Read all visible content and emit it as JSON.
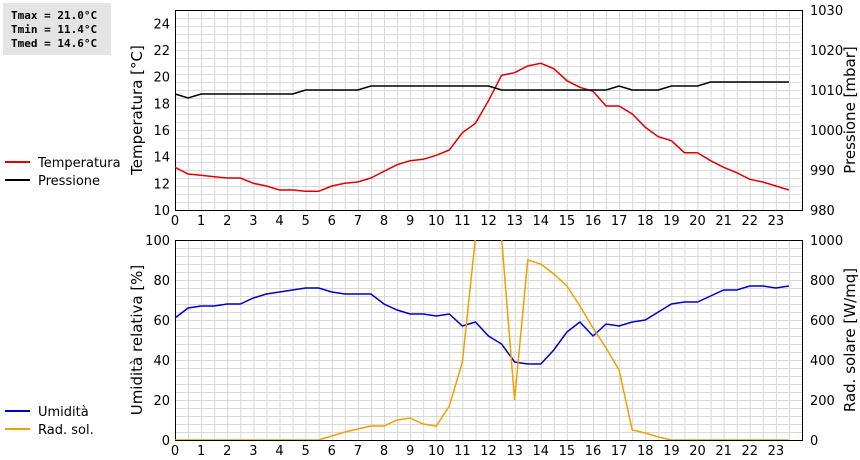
{
  "stats": {
    "tmax": "Tmax = 21.0°C",
    "tmin": "Tmin = 11.4°C",
    "tmed": "Tmed = 14.6°C"
  },
  "colors": {
    "temperature": "#e00000",
    "pressure": "#000000",
    "humidity": "#0000c0",
    "radiation": "#f0a000",
    "grid": "#d8d8d8"
  },
  "chart_data": [
    {
      "type": "line",
      "x_ticks": [
        0,
        1,
        2,
        3,
        4,
        5,
        6,
        7,
        8,
        9,
        10,
        11,
        12,
        13,
        14,
        15,
        16,
        17,
        18,
        19,
        20,
        21,
        22,
        23
      ],
      "xlim": [
        0,
        24
      ],
      "ylabel": "Temperatura [°C]",
      "ylim": [
        10,
        25
      ],
      "y_ticks": [
        10,
        12,
        14,
        16,
        18,
        20,
        22,
        24
      ],
      "y2label": "Pressione [mbar]",
      "y2lim": [
        980,
        1030
      ],
      "y2_ticks": [
        980,
        990,
        1000,
        1010,
        1020,
        1030
      ],
      "grid": true,
      "legend_position": "left",
      "series": [
        {
          "name": "Temperatura",
          "axis": "left",
          "color": "#e00000",
          "x": [
            0,
            0.5,
            1,
            1.5,
            2,
            2.5,
            3,
            3.5,
            4,
            4.5,
            5,
            5.5,
            6,
            6.5,
            7,
            7.5,
            8,
            8.5,
            9,
            9.5,
            10,
            10.5,
            11,
            11.5,
            12,
            12.5,
            13,
            13.5,
            14,
            14.5,
            15,
            15.5,
            16,
            16.5,
            17,
            17.5,
            18,
            18.5,
            19,
            19.5,
            20,
            20.5,
            21,
            21.5,
            22,
            22.5,
            23,
            23.5
          ],
          "y": [
            13.2,
            12.7,
            12.6,
            12.5,
            12.4,
            12.4,
            12.0,
            11.8,
            11.5,
            11.5,
            11.4,
            11.4,
            11.8,
            12.0,
            12.1,
            12.4,
            12.9,
            13.4,
            13.7,
            13.8,
            14.1,
            14.5,
            15.8,
            16.5,
            18.2,
            20.1,
            20.3,
            20.8,
            21.0,
            20.6,
            19.7,
            19.2,
            18.9,
            17.8,
            17.8,
            17.2,
            16.2,
            15.5,
            15.2,
            14.3,
            14.3,
            13.7,
            13.2,
            12.8,
            12.3,
            12.1,
            11.8,
            11.5
          ]
        },
        {
          "name": "Pressione",
          "axis": "right",
          "color": "#000000",
          "x": [
            0,
            0.5,
            1,
            1.5,
            2,
            2.5,
            3,
            3.5,
            4,
            4.5,
            5,
            5.5,
            6,
            6.5,
            7,
            7.5,
            8,
            8.5,
            9,
            9.5,
            10,
            10.5,
            11,
            11.5,
            12,
            12.5,
            13,
            13.5,
            14,
            14.5,
            15,
            15.5,
            16,
            16.5,
            17,
            17.5,
            18,
            18.5,
            19,
            19.5,
            20,
            20.5,
            21,
            21.5,
            22,
            22.5,
            23,
            23.5
          ],
          "y": [
            1009,
            1008,
            1009,
            1009,
            1009,
            1009,
            1009,
            1009,
            1009,
            1009,
            1010,
            1010,
            1010,
            1010,
            1010,
            1011,
            1011,
            1011,
            1011,
            1011,
            1011,
            1011,
            1011,
            1011,
            1011,
            1010,
            1010,
            1010,
            1010,
            1010,
            1010,
            1010,
            1010,
            1010,
            1011,
            1010,
            1010,
            1010,
            1011,
            1011,
            1011,
            1012,
            1012,
            1012,
            1012,
            1012,
            1012,
            1012
          ]
        }
      ]
    },
    {
      "type": "line",
      "x_ticks": [
        0,
        1,
        2,
        3,
        4,
        5,
        6,
        7,
        8,
        9,
        10,
        11,
        12,
        13,
        14,
        15,
        16,
        17,
        18,
        19,
        20,
        21,
        22,
        23
      ],
      "xlim": [
        0,
        24
      ],
      "ylabel": "Umidità relativa [%]",
      "ylim": [
        0,
        100
      ],
      "y_ticks": [
        0,
        20,
        40,
        60,
        80,
        100
      ],
      "y2label": "Rad. solare [W/mq]",
      "y2lim": [
        0,
        1000
      ],
      "y2_ticks": [
        0,
        200,
        400,
        600,
        800,
        1000
      ],
      "grid": true,
      "legend_position": "left",
      "series": [
        {
          "name": "Umidità",
          "axis": "left",
          "color": "#0000c0",
          "x": [
            0,
            0.5,
            1,
            1.5,
            2,
            2.5,
            3,
            3.5,
            4,
            4.5,
            5,
            5.5,
            6,
            6.5,
            7,
            7.5,
            8,
            8.5,
            9,
            9.5,
            10,
            10.5,
            11,
            11.5,
            12,
            12.5,
            13,
            13.5,
            14,
            14.5,
            15,
            15.5,
            16,
            16.5,
            17,
            17.5,
            18,
            18.5,
            19,
            19.5,
            20,
            20.5,
            21,
            21.5,
            22,
            22.5,
            23,
            23.5
          ],
          "y": [
            61,
            66,
            67,
            67,
            68,
            68,
            71,
            73,
            74,
            75,
            76,
            76,
            74,
            73,
            73,
            73,
            68,
            65,
            63,
            63,
            62,
            63,
            57,
            59,
            52,
            48,
            39,
            38,
            38,
            45,
            54,
            59,
            52,
            58,
            57,
            59,
            60,
            64,
            68,
            69,
            69,
            72,
            75,
            75,
            77,
            77,
            76,
            77
          ]
        },
        {
          "name": "Rad. sol.",
          "axis": "right",
          "color": "#f0a000",
          "x": [
            0,
            0.5,
            1,
            1.5,
            2,
            2.5,
            3,
            3.5,
            4,
            4.5,
            5,
            5.5,
            6,
            6.5,
            7,
            7.5,
            8,
            8.5,
            9,
            9.5,
            10,
            10.5,
            11,
            11.5,
            12,
            12.5,
            13,
            13.5,
            14,
            14.5,
            15,
            15.5,
            16,
            16.5,
            17,
            17.5,
            18,
            18.5,
            19,
            19.5,
            20,
            20.5,
            21,
            21.5,
            22,
            22.5,
            23,
            23.5
          ],
          "y": [
            0,
            0,
            0,
            0,
            0,
            0,
            0,
            0,
            0,
            0,
            0,
            0,
            20,
            40,
            55,
            70,
            70,
            100,
            110,
            80,
            70,
            170,
            390,
            1010,
            1040,
            1010,
            200,
            900,
            880,
            830,
            770,
            670,
            560,
            460,
            350,
            50,
            35,
            15,
            0,
            0,
            0,
            0,
            0,
            0,
            0,
            0,
            0,
            0
          ]
        }
      ]
    }
  ]
}
